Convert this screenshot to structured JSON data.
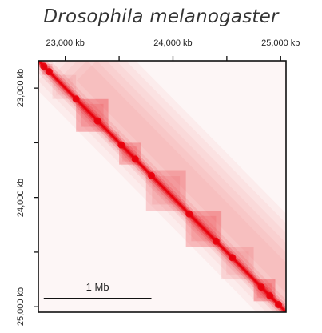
{
  "title": "Drosophila melanogaster",
  "chart_data": {
    "type": "heatmap",
    "title": "Drosophila melanogaster",
    "x_range_kb": [
      22750,
      25050
    ],
    "y_range_kb": [
      22750,
      25050
    ],
    "x_ticks": [
      {
        "value": 23000,
        "label": "23,000 kb"
      },
      {
        "value": 23500,
        "label": ""
      },
      {
        "value": 24000,
        "label": "24,000 kb"
      },
      {
        "value": 24500,
        "label": ""
      },
      {
        "value": 25000,
        "label": "25,000 kb"
      }
    ],
    "y_ticks": [
      {
        "value": 23000,
        "label": "23,000 kb"
      },
      {
        "value": 23500,
        "label": ""
      },
      {
        "value": 24000,
        "label": "24,000 kb"
      },
      {
        "value": 24500,
        "label": ""
      },
      {
        "value": 25000,
        "label": "25,000 kb"
      }
    ],
    "colormap": [
      "#ffffff",
      "#e8000b"
    ],
    "domains_kb": [
      {
        "start": 22780,
        "end": 22880,
        "intensity": 0.3
      },
      {
        "start": 22880,
        "end": 23100,
        "intensity": 0.12
      },
      {
        "start": 23100,
        "end": 23400,
        "intensity": 0.45
      },
      {
        "start": 23400,
        "end": 23500,
        "intensity": 0.15
      },
      {
        "start": 23500,
        "end": 23700,
        "intensity": 0.4
      },
      {
        "start": 23750,
        "end": 24120,
        "intensity": 0.3
      },
      {
        "start": 24120,
        "end": 24450,
        "intensity": 0.4
      },
      {
        "start": 24450,
        "end": 24750,
        "intensity": 0.2
      },
      {
        "start": 24750,
        "end": 24950,
        "intensity": 0.5
      }
    ],
    "scale_bar": {
      "length_kb": 1000,
      "label": "1 Mb"
    }
  }
}
